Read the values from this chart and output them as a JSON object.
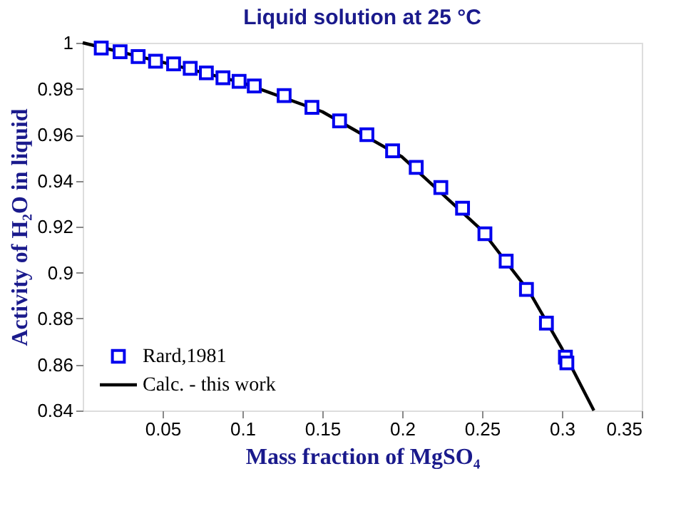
{
  "chart_data": {
    "type": "scatter",
    "title": "Liquid solution at 25 °C",
    "xlabel": "Mass fraction of MgSO₄",
    "ylabel": "Activity of H₂O in liquid",
    "xlim": [
      0,
      0.35
    ],
    "xticks": [
      0.05,
      0.1,
      0.15,
      0.2,
      0.25,
      0.3,
      0.35
    ],
    "ylim": [
      0.84,
      1
    ],
    "yticks": [
      0.84,
      0.86,
      0.88,
      0.9,
      0.92,
      0.94,
      0.96,
      0.98,
      {
        "value": 1,
        "label": "1"
      }
    ],
    "grid": false,
    "legend": "bottom left",
    "series": [
      {
        "name": "Rard,1981",
        "type": "scatter",
        "marker": "square",
        "color": "#0000ee",
        "x": [
          0.0116,
          0.0234,
          0.0347,
          0.0456,
          0.0569,
          0.0673,
          0.0774,
          0.0878,
          0.0979,
          0.1074,
          0.1261,
          0.1435,
          0.1608,
          0.1779,
          0.194,
          0.2088,
          0.2242,
          0.2378,
          0.2518,
          0.2651,
          0.2778,
          0.2903,
          0.3022,
          0.3031
        ],
        "values": [
          0.9977,
          0.9961,
          0.994,
          0.992,
          0.9908,
          0.9889,
          0.9869,
          0.9848,
          0.9832,
          0.9812,
          0.977,
          0.9719,
          0.966,
          0.96,
          0.953,
          0.9458,
          0.937,
          0.928,
          0.9169,
          0.905,
          0.8927,
          0.878,
          0.8632,
          0.8607
        ]
      },
      {
        "name": "Calc. - this work",
        "type": "line",
        "color": "#000000",
        "line_style": "solid",
        "x": [
          0,
          0.05,
          0.1,
          0.15,
          0.2,
          0.25,
          0.28,
          0.3,
          0.32
        ],
        "values": [
          1.0,
          0.9915,
          0.9826,
          0.97,
          0.9503,
          0.9183,
          0.8912,
          0.867,
          0.84
        ]
      }
    ]
  }
}
